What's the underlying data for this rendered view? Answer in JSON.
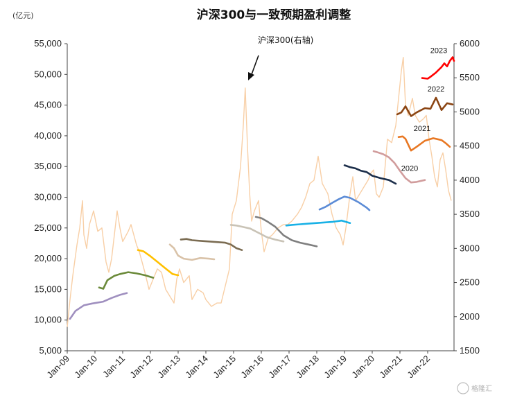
{
  "chart_data": {
    "type": "line",
    "title": "沪深300与一致预期盈利调整",
    "left_unit": "(亿元)",
    "left_axis": {
      "min": 5000,
      "max": 55000,
      "ticks": [
        "5,000",
        "10,000",
        "15,000",
        "20,000",
        "25,000",
        "30,000",
        "35,000",
        "40,000",
        "45,000",
        "50,000",
        "55,000"
      ]
    },
    "right_axis": {
      "min": 1500,
      "max": 6000,
      "ticks": [
        "1500",
        "2000",
        "2500",
        "3000",
        "3500",
        "4000",
        "4500",
        "5000",
        "5500",
        "6000"
      ]
    },
    "x_axis": {
      "start": 2009.0,
      "end": 2022.95,
      "ticks": [
        "Jan-09",
        "Jan-10",
        "Jan-11",
        "Jan-12",
        "Jan-13",
        "Jan-14",
        "Jan-15",
        "Jan-16",
        "Jan-17",
        "Jan-18",
        "Jan-19",
        "Jan-20",
        "Jan-21",
        "Jan-22"
      ]
    },
    "grid": false,
    "annotation": "沪深300(右轴)",
    "index_series": {
      "name": "沪深300(右轴)",
      "axis": "right",
      "color": "#f8cfa6",
      "points": [
        [
          2009.0,
          1850
        ],
        [
          2009.1,
          2250
        ],
        [
          2009.2,
          2600
        ],
        [
          2009.35,
          3050
        ],
        [
          2009.45,
          3300
        ],
        [
          2009.55,
          3700
        ],
        [
          2009.6,
          3200
        ],
        [
          2009.7,
          3000
        ],
        [
          2009.8,
          3350
        ],
        [
          2009.95,
          3550
        ],
        [
          2010.1,
          3250
        ],
        [
          2010.25,
          3300
        ],
        [
          2010.4,
          2800
        ],
        [
          2010.5,
          2650
        ],
        [
          2010.6,
          2850
        ],
        [
          2010.8,
          3550
        ],
        [
          2010.9,
          3300
        ],
        [
          2011.0,
          3100
        ],
        [
          2011.2,
          3250
        ],
        [
          2011.3,
          3350
        ],
        [
          2011.5,
          3050
        ],
        [
          2011.6,
          2950
        ],
        [
          2011.8,
          2650
        ],
        [
          2011.95,
          2400
        ],
        [
          2012.1,
          2550
        ],
        [
          2012.25,
          2700
        ],
        [
          2012.4,
          2650
        ],
        [
          2012.55,
          2400
        ],
        [
          2012.7,
          2300
        ],
        [
          2012.85,
          2200
        ],
        [
          2012.95,
          2550
        ],
        [
          2013.05,
          2700
        ],
        [
          2013.2,
          2500
        ],
        [
          2013.4,
          2600
        ],
        [
          2013.5,
          2250
        ],
        [
          2013.7,
          2400
        ],
        [
          2013.9,
          2350
        ],
        [
          2014.0,
          2250
        ],
        [
          2014.2,
          2150
        ],
        [
          2014.4,
          2200
        ],
        [
          2014.55,
          2200
        ],
        [
          2014.7,
          2450
        ],
        [
          2014.85,
          2700
        ],
        [
          2014.95,
          3500
        ],
        [
          2015.1,
          3700
        ],
        [
          2015.25,
          4200
        ],
        [
          2015.35,
          4800
        ],
        [
          2015.42,
          5350
        ],
        [
          2015.5,
          4500
        ],
        [
          2015.58,
          3800
        ],
        [
          2015.65,
          3400
        ],
        [
          2015.75,
          3550
        ],
        [
          2015.9,
          3700
        ],
        [
          2016.0,
          3250
        ],
        [
          2016.1,
          2950
        ],
        [
          2016.25,
          3150
        ],
        [
          2016.4,
          3200
        ],
        [
          2016.6,
          3300
        ],
        [
          2016.8,
          3350
        ],
        [
          2016.95,
          3350
        ],
        [
          2017.1,
          3400
        ],
        [
          2017.3,
          3500
        ],
        [
          2017.45,
          3600
        ],
        [
          2017.6,
          3750
        ],
        [
          2017.75,
          3950
        ],
        [
          2017.9,
          4000
        ],
        [
          2018.05,
          4350
        ],
        [
          2018.2,
          3950
        ],
        [
          2018.4,
          3800
        ],
        [
          2018.55,
          3500
        ],
        [
          2018.7,
          3300
        ],
        [
          2018.85,
          3200
        ],
        [
          2018.95,
          3050
        ],
        [
          2019.05,
          3300
        ],
        [
          2019.2,
          3800
        ],
        [
          2019.3,
          4050
        ],
        [
          2019.4,
          3700
        ],
        [
          2019.55,
          3800
        ],
        [
          2019.7,
          3900
        ],
        [
          2019.85,
          4000
        ],
        [
          2019.95,
          4100
        ],
        [
          2020.05,
          4150
        ],
        [
          2020.15,
          3800
        ],
        [
          2020.25,
          3750
        ],
        [
          2020.4,
          3900
        ],
        [
          2020.55,
          4600
        ],
        [
          2020.7,
          4550
        ],
        [
          2020.85,
          4800
        ],
        [
          2020.95,
          5200
        ],
        [
          2021.05,
          5600
        ],
        [
          2021.12,
          5800
        ],
        [
          2021.2,
          5100
        ],
        [
          2021.3,
          4950
        ],
        [
          2021.45,
          5200
        ],
        [
          2021.55,
          4950
        ],
        [
          2021.7,
          4850
        ],
        [
          2021.85,
          4900
        ],
        [
          2021.95,
          4950
        ],
        [
          2022.05,
          4600
        ],
        [
          2022.15,
          4350
        ],
        [
          2022.25,
          4050
        ],
        [
          2022.35,
          3900
        ],
        [
          2022.45,
          4300
        ],
        [
          2022.55,
          4400
        ],
        [
          2022.65,
          4150
        ],
        [
          2022.75,
          3850
        ],
        [
          2022.85,
          3700
        ]
      ]
    },
    "series": [
      {
        "axis": "left",
        "color": "#9f8fbf",
        "points": [
          [
            2009.1,
            10200
          ],
          [
            2009.3,
            11500
          ],
          [
            2009.6,
            12400
          ],
          [
            2009.9,
            12700
          ],
          [
            2010.3,
            13000
          ],
          [
            2010.6,
            13600
          ],
          [
            2010.9,
            14100
          ],
          [
            2011.15,
            14400
          ]
        ]
      },
      {
        "axis": "left",
        "color": "#6b8a3a",
        "points": [
          [
            2010.15,
            15300
          ],
          [
            2010.3,
            15100
          ],
          [
            2010.45,
            16500
          ],
          [
            2010.7,
            17200
          ],
          [
            2010.9,
            17500
          ],
          [
            2011.2,
            17800
          ],
          [
            2011.5,
            17600
          ],
          [
            2011.8,
            17300
          ],
          [
            2012.1,
            16900
          ]
        ]
      },
      {
        "axis": "left",
        "color": "#ffc000",
        "points": [
          [
            2011.55,
            21400
          ],
          [
            2011.75,
            21200
          ],
          [
            2012.0,
            20400
          ],
          [
            2012.3,
            19300
          ],
          [
            2012.6,
            18200
          ],
          [
            2012.8,
            17500
          ],
          [
            2013.0,
            17300
          ]
        ]
      },
      {
        "axis": "left",
        "color": "#d9c2a8",
        "points": [
          [
            2012.7,
            22300
          ],
          [
            2012.85,
            21700
          ],
          [
            2013.0,
            20500
          ],
          [
            2013.2,
            20000
          ],
          [
            2013.5,
            19800
          ],
          [
            2013.8,
            20100
          ],
          [
            2014.1,
            20000
          ],
          [
            2014.3,
            19900
          ]
        ]
      },
      {
        "axis": "left",
        "color": "#7b6c52",
        "points": [
          [
            2013.1,
            23100
          ],
          [
            2013.3,
            23200
          ],
          [
            2013.5,
            23000
          ],
          [
            2013.8,
            22900
          ],
          [
            2014.1,
            22800
          ],
          [
            2014.4,
            22700
          ],
          [
            2014.7,
            22600
          ],
          [
            2014.9,
            22300
          ],
          [
            2015.1,
            21700
          ],
          [
            2015.3,
            21400
          ]
        ]
      },
      {
        "axis": "left",
        "color": "#c9c3b6",
        "points": [
          [
            2014.9,
            25500
          ],
          [
            2015.1,
            25400
          ],
          [
            2015.3,
            25200
          ],
          [
            2015.6,
            24900
          ],
          [
            2015.9,
            24200
          ],
          [
            2016.2,
            23500
          ],
          [
            2016.5,
            23100
          ],
          [
            2016.8,
            22800
          ]
        ]
      },
      {
        "axis": "left",
        "color": "#7f7f7f",
        "points": [
          [
            2015.8,
            26800
          ],
          [
            2016.0,
            26600
          ],
          [
            2016.2,
            26100
          ],
          [
            2016.5,
            25200
          ],
          [
            2016.8,
            23800
          ],
          [
            2017.1,
            23000
          ],
          [
            2017.4,
            22600
          ],
          [
            2017.7,
            22300
          ],
          [
            2018.0,
            22000
          ]
        ]
      },
      {
        "axis": "left",
        "color": "#19b1e6",
        "points": [
          [
            2016.9,
            25400
          ],
          [
            2017.1,
            25500
          ],
          [
            2017.4,
            25600
          ],
          [
            2017.7,
            25700
          ],
          [
            2018.0,
            25800
          ],
          [
            2018.3,
            25900
          ],
          [
            2018.6,
            26000
          ],
          [
            2018.9,
            26200
          ],
          [
            2019.2,
            25800
          ]
        ]
      },
      {
        "axis": "left",
        "color": "#5b8bd6",
        "points": [
          [
            2018.1,
            28000
          ],
          [
            2018.3,
            28400
          ],
          [
            2018.6,
            29200
          ],
          [
            2018.8,
            29700
          ],
          [
            2019.0,
            30100
          ],
          [
            2019.2,
            29900
          ],
          [
            2019.5,
            29200
          ],
          [
            2019.8,
            28300
          ],
          [
            2019.9,
            27900
          ]
        ]
      },
      {
        "axis": "left",
        "color": "#1c2e4a",
        "points": [
          [
            2019.0,
            35200
          ],
          [
            2019.2,
            34900
          ],
          [
            2019.4,
            34700
          ],
          [
            2019.6,
            34300
          ],
          [
            2019.8,
            34100
          ],
          [
            2020.0,
            33500
          ],
          [
            2020.3,
            33100
          ],
          [
            2020.6,
            32800
          ],
          [
            2020.85,
            32200
          ]
        ]
      },
      {
        "axis": "left",
        "color": "#d19c9c",
        "points": [
          [
            2020.05,
            37500
          ],
          [
            2020.2,
            37300
          ],
          [
            2020.4,
            37000
          ],
          [
            2020.6,
            36500
          ],
          [
            2020.8,
            35600
          ],
          [
            2021.0,
            34300
          ],
          [
            2021.2,
            33100
          ],
          [
            2021.4,
            32400
          ],
          [
            2021.6,
            32500
          ],
          [
            2021.9,
            32800
          ]
        ]
      },
      {
        "axis": "left",
        "color": "#e87722",
        "points": [
          [
            2020.95,
            39800
          ],
          [
            2021.1,
            39900
          ],
          [
            2021.2,
            39500
          ],
          [
            2021.4,
            37600
          ],
          [
            2021.6,
            38200
          ],
          [
            2021.9,
            39200
          ],
          [
            2022.2,
            39600
          ],
          [
            2022.5,
            39300
          ],
          [
            2022.65,
            38800
          ],
          [
            2022.8,
            38200
          ]
        ]
      },
      {
        "axis": "left",
        "color": "#8b4513",
        "points": [
          [
            2020.9,
            43500
          ],
          [
            2021.05,
            43800
          ],
          [
            2021.2,
            44800
          ],
          [
            2021.4,
            43200
          ],
          [
            2021.6,
            43800
          ],
          [
            2021.9,
            44500
          ],
          [
            2022.1,
            44400
          ],
          [
            2022.3,
            46200
          ],
          [
            2022.5,
            44200
          ],
          [
            2022.7,
            45300
          ],
          [
            2022.9,
            45100
          ]
        ]
      },
      {
        "axis": "left",
        "color": "#ff0000",
        "points": [
          [
            2021.8,
            49400
          ],
          [
            2022.0,
            49300
          ],
          [
            2022.1,
            49600
          ],
          [
            2022.3,
            50300
          ],
          [
            2022.5,
            51200
          ],
          [
            2022.6,
            51800
          ],
          [
            2022.7,
            51300
          ],
          [
            2022.8,
            52200
          ],
          [
            2022.9,
            52800
          ],
          [
            2022.95,
            52200
          ]
        ]
      }
    ],
    "year_labels": [
      {
        "text": "2023",
        "x": 2022.4,
        "y": 53500
      },
      {
        "text": "2022",
        "x": 2022.3,
        "y": 47200
      },
      {
        "text": "2021",
        "x": 2021.8,
        "y": 40800
      },
      {
        "text": "2020",
        "x": 2021.35,
        "y": 34300
      }
    ]
  },
  "watermark": "格隆汇"
}
